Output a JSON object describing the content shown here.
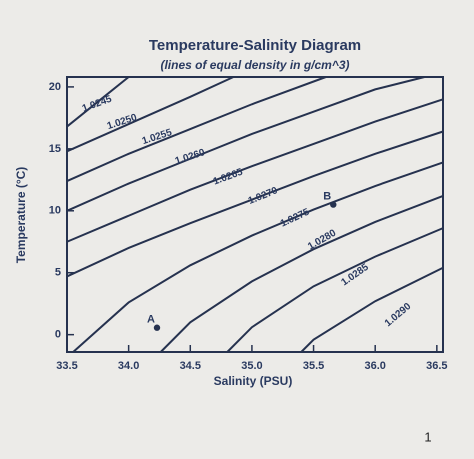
{
  "chart_data": {
    "type": "line",
    "title": "Temperature-Salinity Diagram",
    "subtitle": "(lines of equal density in g/cm^3)",
    "x_label": "Salinity (PSU)",
    "y_label": "Temperature (°C)",
    "xlim": [
      33.5,
      36.55
    ],
    "ylim": [
      -1.4,
      20.8
    ],
    "xticks": [
      33.5,
      {
        "value": 34,
        "label": "34.0"
      },
      34.5,
      {
        "value": 35,
        "label": "35.0"
      },
      35.5,
      {
        "value": 36,
        "label": "36.0"
      },
      36.5
    ],
    "yticks": [
      0,
      5,
      10,
      15,
      20
    ],
    "series": [
      {
        "name": "1.0245",
        "color": "#26324f",
        "x": [
          33.5,
          33.8,
          34.0
        ],
        "values": [
          16.8,
          19.2,
          20.8
        ]
      },
      {
        "name": "1.0250",
        "color": "#26324f",
        "x": [
          33.5,
          34.0,
          34.5,
          34.85
        ],
        "values": [
          14.8,
          17.0,
          19.2,
          20.8
        ]
      },
      {
        "name": "1.0255",
        "color": "#26324f",
        "x": [
          33.5,
          34.0,
          34.5,
          35.0,
          35.6
        ],
        "values": [
          12.4,
          14.6,
          16.6,
          18.6,
          20.8
        ]
      },
      {
        "name": "1.0260",
        "color": "#26324f",
        "x": [
          33.5,
          34.0,
          34.5,
          35.0,
          35.5,
          36.0,
          36.4
        ],
        "values": [
          10.0,
          12.2,
          14.2,
          16.2,
          18.0,
          19.8,
          20.8
        ]
      },
      {
        "name": "1.0265",
        "color": "#26324f",
        "x": [
          33.5,
          34.0,
          34.5,
          35.0,
          35.5,
          36.0,
          36.55
        ],
        "values": [
          7.5,
          9.6,
          11.7,
          13.6,
          15.4,
          17.2,
          19.0
        ]
      },
      {
        "name": "1.0270",
        "color": "#26324f",
        "x": [
          33.5,
          34.0,
          34.5,
          35.0,
          35.5,
          36.0,
          36.55
        ],
        "values": [
          4.7,
          7.0,
          9.0,
          10.9,
          12.8,
          14.6,
          16.4
        ]
      },
      {
        "name": "1.0275",
        "color": "#26324f",
        "x": [
          33.55,
          34.0,
          34.5,
          35.0,
          35.5,
          36.0,
          36.55
        ],
        "values": [
          -1.4,
          2.6,
          5.6,
          8.0,
          10.1,
          12.0,
          13.9
        ]
      },
      {
        "name": "1.0280",
        "color": "#26324f",
        "x": [
          34.26,
          34.5,
          35.0,
          35.5,
          36.0,
          36.55
        ],
        "values": [
          -1.4,
          1.0,
          4.3,
          6.9,
          9.1,
          11.2
        ]
      },
      {
        "name": "1.0285",
        "color": "#26324f",
        "x": [
          34.8,
          35.0,
          35.5,
          36.0,
          36.55
        ],
        "values": [
          -1.4,
          0.6,
          3.9,
          6.3,
          8.6
        ]
      },
      {
        "name": "1.0290",
        "color": "#26324f",
        "x": [
          35.4,
          35.5,
          36.0,
          36.55
        ],
        "values": [
          -1.4,
          -0.4,
          2.7,
          5.4
        ]
      }
    ],
    "points": [
      {
        "label": "A",
        "x": 34.23,
        "y": 0.56
      },
      {
        "label": "B",
        "x": 35.66,
        "y": 10.5
      }
    ]
  },
  "page_number": "1"
}
